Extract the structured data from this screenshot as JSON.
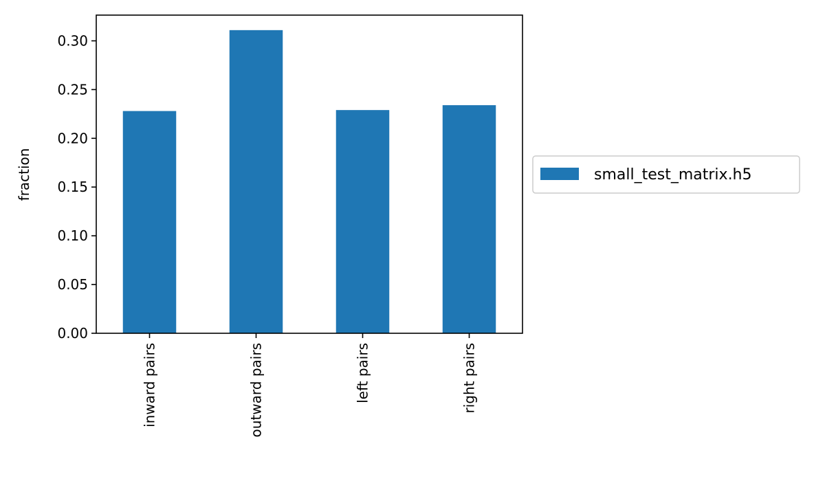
{
  "chart_data": {
    "type": "bar",
    "categories": [
      "inward pairs",
      "outward pairs",
      "left pairs",
      "right pairs"
    ],
    "series": [
      {
        "name": "small_test_matrix.h5",
        "values": [
          0.228,
          0.311,
          0.229,
          0.234
        ],
        "color": "#1f77b4"
      }
    ],
    "xlabel": "",
    "ylabel": "fraction",
    "ylim": [
      0,
      0.3264
    ],
    "yticks": [
      0.0,
      0.05,
      0.1,
      0.15,
      0.2,
      0.25,
      0.3
    ],
    "ytick_labels": [
      "0.00",
      "0.05",
      "0.10",
      "0.15",
      "0.20",
      "0.25",
      "0.30"
    ],
    "grid": false,
    "legend_position": "outside-right"
  }
}
